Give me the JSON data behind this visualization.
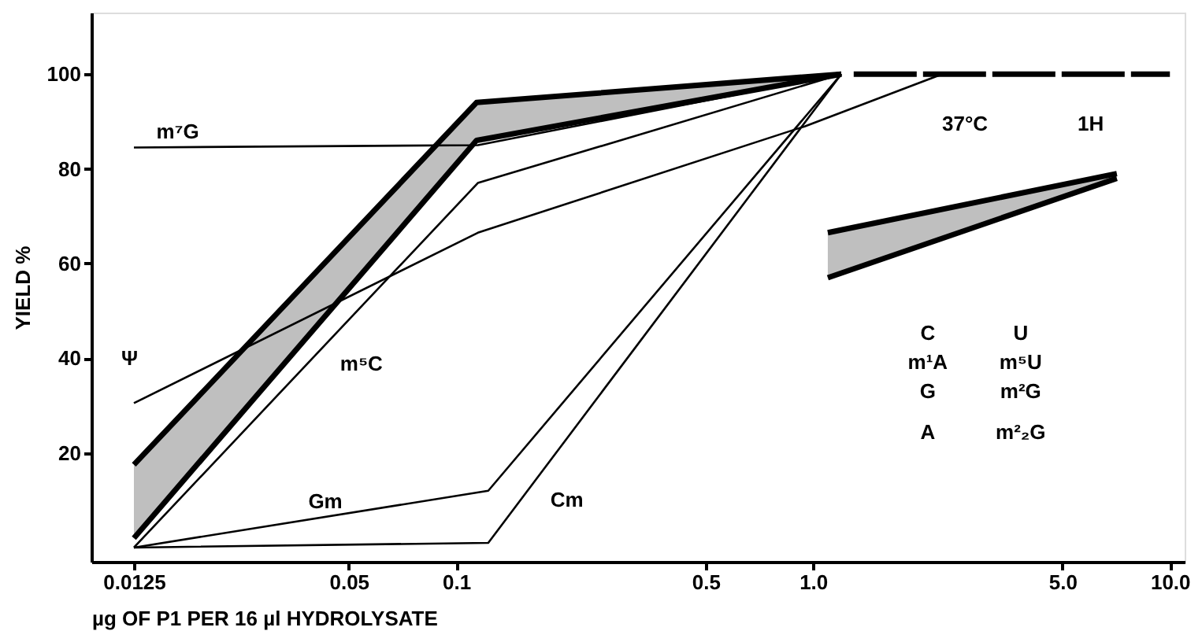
{
  "chart_data": {
    "type": "line",
    "xlabel": "µg OF P1  PER 16 µl HYDROLYSATE",
    "ylabel": "YIELD %",
    "log": "x",
    "xlim": [
      0.0095,
      11
    ],
    "ylim": [
      -3,
      113
    ],
    "xticks": [
      0.0125,
      0.05,
      0.1,
      0.5,
      {
        "value": 1,
        "label": "1.0"
      },
      {
        "value": 5,
        "label": "5.0"
      },
      {
        "value": 10,
        "label": "10.0"
      }
    ],
    "yticks": [
      20,
      40,
      60,
      80,
      100
    ],
    "grid": false,
    "marker": "none",
    "series": [
      {
        "color": "#000000",
        "x": [
          0.0125,
          0.114,
          1.2
        ],
        "values": [
          17.5,
          94,
          100
        ],
        "lower": [
          2,
          86,
          100
        ],
        "upper": [
          17.5,
          94,
          100
        ]
      },
      {
        "color": "#000000",
        "x": [
          0.0125,
          0.114,
          1.2
        ],
        "values": [
          2,
          86,
          100
        ]
      },
      {
        "color": "#000000",
        "x": [
          1.3,
          10
        ],
        "values": [
          100,
          100
        ],
        "line_style": "dashed"
      },
      {
        "color": "#000000",
        "x": [
          1.1,
          7.1
        ],
        "values": [
          57,
          78
        ]
      },
      {
        "color": "#000000",
        "x": [
          1.1,
          7.1
        ],
        "values": [
          66.5,
          79
        ],
        "lower": [
          57,
          78
        ],
        "upper": [
          66.5,
          79
        ]
      },
      {
        "color": "#000000",
        "x": [
          0.0125,
          0.115,
          1.2
        ],
        "values": [
          84.5,
          85,
          100
        ]
      },
      {
        "color": "#000000",
        "x": [
          0.0125,
          0.115,
          0.95,
          2.3
        ],
        "values": [
          30.5,
          66.5,
          89,
          100
        ]
      },
      {
        "color": "#000000",
        "x": [
          0.0125,
          0.115,
          1.2
        ],
        "values": [
          0,
          77,
          100
        ]
      },
      {
        "color": "#000000",
        "x": [
          0.0125,
          0.123,
          1.2
        ],
        "values": [
          0,
          12,
          100
        ]
      },
      {
        "color": "#000000",
        "x": [
          0.0125,
          0.123,
          1.2
        ],
        "values": [
          0,
          1,
          100
        ]
      }
    ],
    "annotations": [
      "m⁷G",
      "Ψ",
      "m⁵C",
      "Gm",
      "Cm",
      "37°C",
      "1H",
      "C",
      "m¹A",
      "G",
      "A",
      "U",
      "m⁵U",
      "m²G",
      "m²₂G"
    ]
  }
}
